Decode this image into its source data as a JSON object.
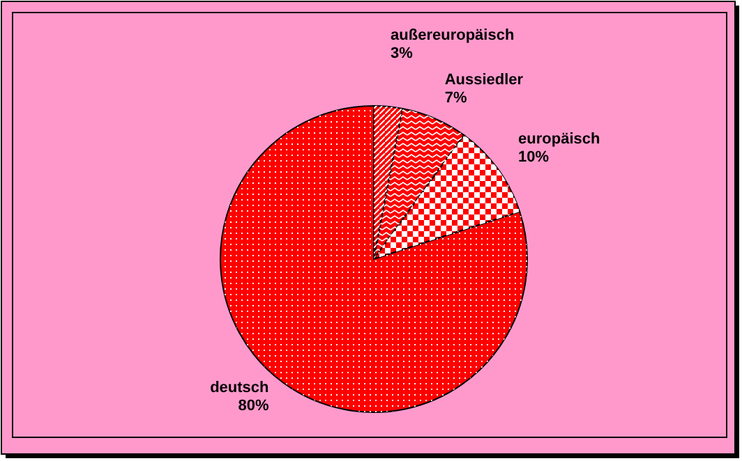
{
  "chart_data": {
    "type": "pie",
    "categories": [
      "außereuropäisch",
      "Aussiedler",
      "europäisch",
      "deutsch"
    ],
    "values": [
      3,
      7,
      10,
      80
    ],
    "value_labels": [
      "3%",
      "7%",
      "10%",
      "80%"
    ],
    "colors": [
      "#ff0000",
      "#ff0000",
      "#ff0000",
      "#ff0000"
    ]
  }
}
